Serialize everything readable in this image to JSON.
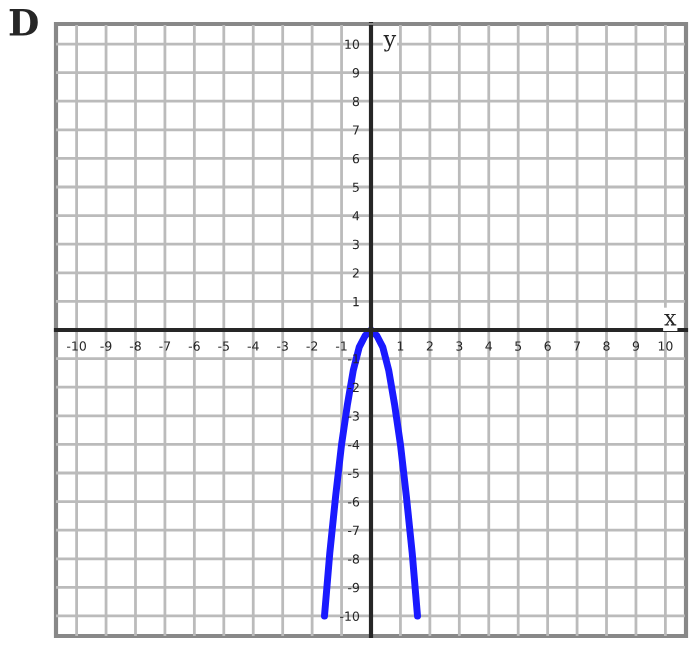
{
  "chart_data": {
    "type": "line",
    "title": "D",
    "xlabel": "x",
    "ylabel": "y",
    "x": [
      -1.58,
      -1.4,
      -1.2,
      -1.0,
      -0.8,
      -0.6,
      -0.4,
      -0.2,
      0,
      0.2,
      0.4,
      0.6,
      0.8,
      1.0,
      1.2,
      1.4,
      1.58
    ],
    "series": [
      {
        "color": "#1a1aff",
        "values": [
          -10,
          -7.8,
          -5.8,
          -4,
          -2.6,
          -1.4,
          -0.6,
          -0.2,
          0,
          -0.2,
          -0.6,
          -1.4,
          -2.6,
          -4,
          -5.8,
          -7.8,
          -10
        ]
      }
    ],
    "xlim": [
      -10.7,
      10.7
    ],
    "ylim": [
      -10.7,
      10.7
    ],
    "xticks": [
      -10,
      -9,
      -8,
      -7,
      -6,
      -5,
      -4,
      -3,
      -2,
      -1,
      1,
      2,
      3,
      4,
      5,
      6,
      7,
      8,
      9,
      10
    ],
    "yticks": [
      -10,
      -9,
      -8,
      -7,
      -6,
      -5,
      -4,
      -3,
      -2,
      -1,
      1,
      2,
      3,
      4,
      5,
      6,
      7,
      8,
      9,
      10
    ],
    "grid": true,
    "legend": false,
    "marker": "none",
    "line_style": "solid"
  }
}
